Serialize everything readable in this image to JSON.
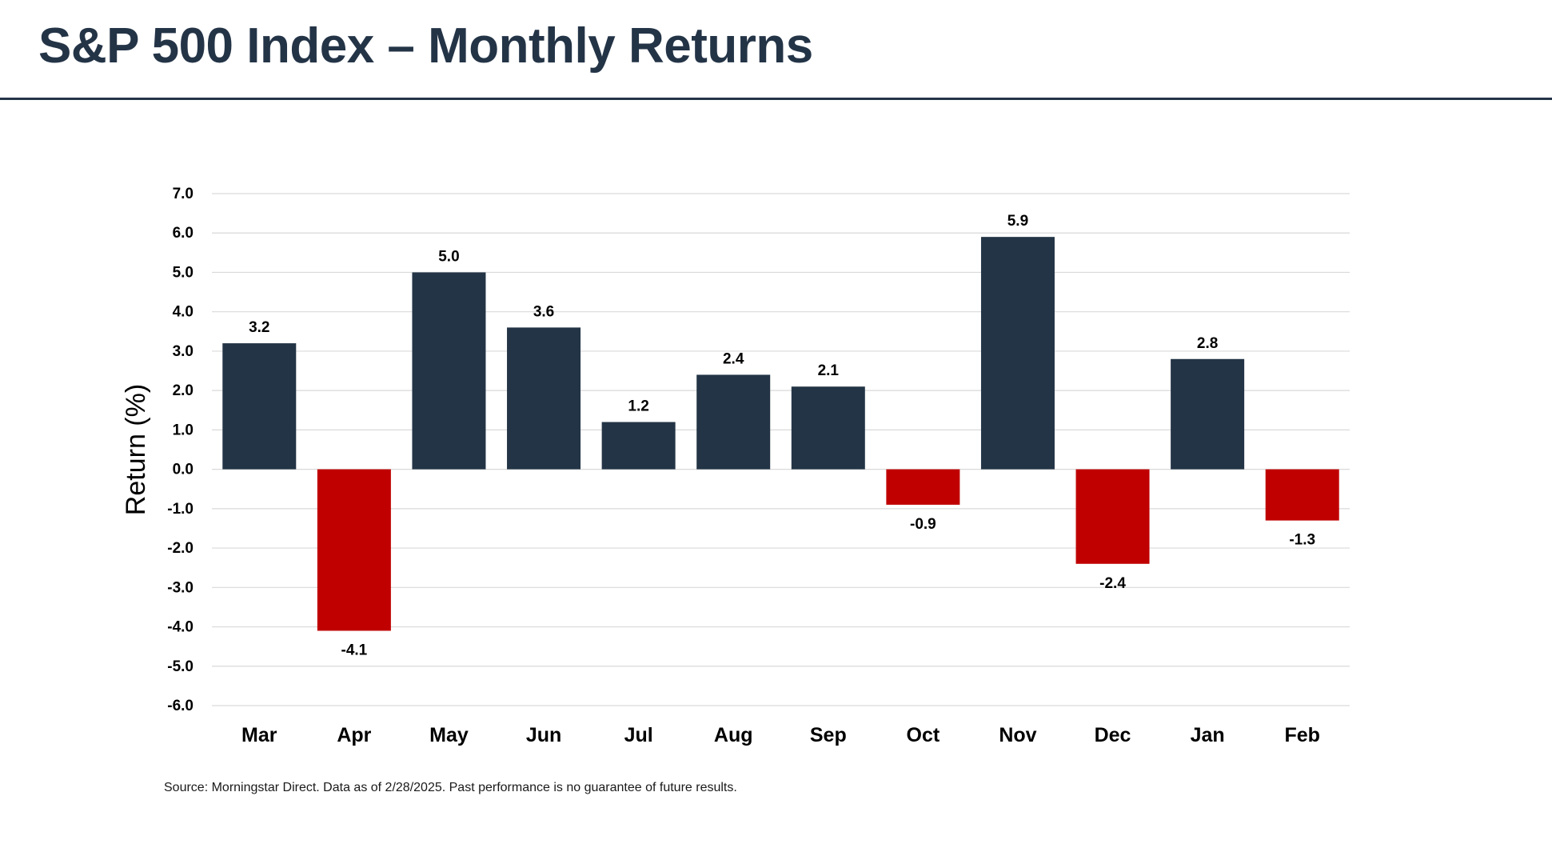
{
  "title": "S&P 500 Index – Monthly Returns",
  "source": "Source: Morningstar Direct. Data as of 2/28/2025. Past performance is no guarantee of future results.",
  "colors": {
    "positive": "#233446",
    "negative": "#C00000",
    "title": "#243447",
    "grid": "#d9d9d9"
  },
  "chart_data": {
    "type": "bar",
    "categories": [
      "Mar",
      "Apr",
      "May",
      "Jun",
      "Jul",
      "Aug",
      "Sep",
      "Oct",
      "Nov",
      "Dec",
      "Jan",
      "Feb"
    ],
    "values": [
      3.2,
      -4.1,
      5.0,
      3.6,
      1.2,
      2.4,
      2.1,
      -0.9,
      5.9,
      -2.4,
      2.8,
      -1.3
    ],
    "data_labels": [
      "3.2",
      "-4.1",
      "5.0",
      "3.6",
      "1.2",
      "2.4",
      "2.1",
      "-0.9",
      "5.9",
      "-2.4",
      "2.8",
      "-1.3"
    ],
    "title": "",
    "xlabel": "",
    "ylabel": "Return (%)",
    "ylim": [
      -6.0,
      7.0
    ],
    "yticks": [
      7.0,
      6.0,
      5.0,
      4.0,
      3.0,
      2.0,
      1.0,
      0.0,
      -1.0,
      -2.0,
      -3.0,
      -4.0,
      -5.0,
      -6.0
    ],
    "ytick_labels": [
      "7.0",
      "6.0",
      "5.0",
      "4.0",
      "3.0",
      "2.0",
      "1.0",
      "0.0",
      "-1.0",
      "-2.0",
      "-3.0",
      "-4.0",
      "-5.0",
      "-6.0"
    ],
    "grid": true,
    "legend": "none"
  }
}
